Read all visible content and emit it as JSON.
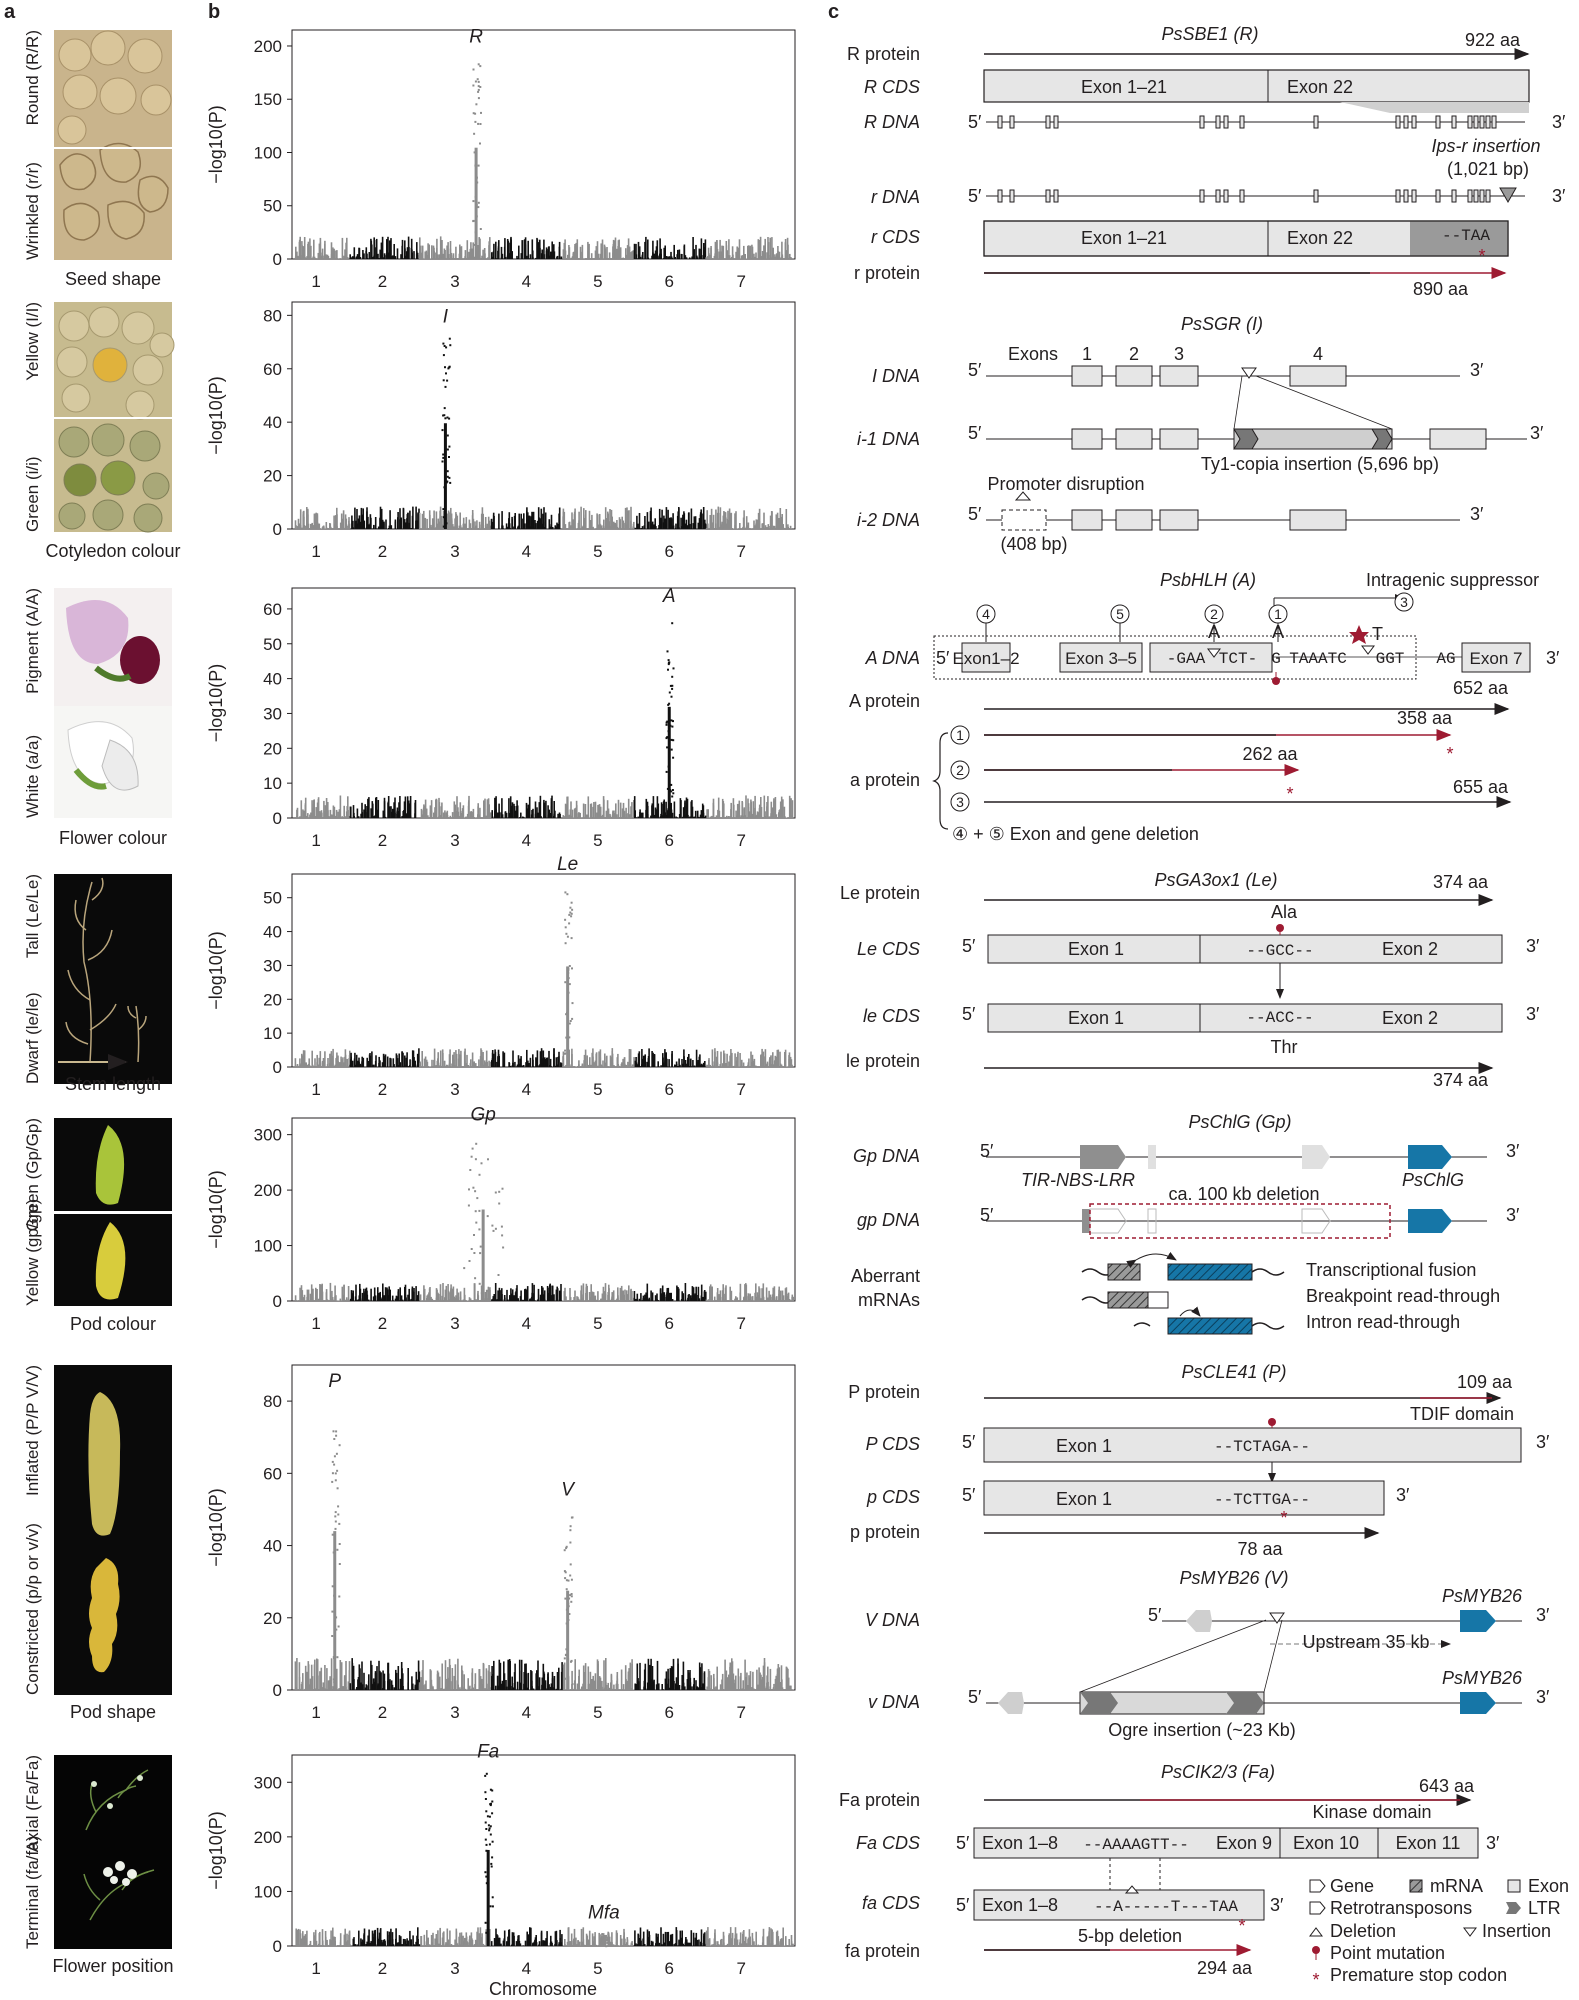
{
  "panel_labels": {
    "a": "a",
    "b": "b",
    "c": "c"
  },
  "colors": {
    "red": "#9e1b32",
    "blue": "#1676a7",
    "grey": "#8c8c8c",
    "black": "#111111",
    "box": "#e6e6e6"
  },
  "traits": [
    {
      "top": "Wrinkled (r/r)",
      "bottom": "Round (R/R)",
      "caption": "Seed shape"
    },
    {
      "top": "Green (i/i)",
      "bottom": "Yellow (I/I)",
      "caption": "Cotyledon colour"
    },
    {
      "top": "White (a/a)",
      "bottom": "Pigment (A/A)",
      "caption": "Flower colour"
    },
    {
      "top": "Dwarf (le/le)",
      "bottom": "Tall (Le/Le)",
      "caption": "Stem length"
    },
    {
      "top": "Yellow (gp/gp)",
      "bottom": "Green (Gp/Gp)",
      "caption": "Pod colour"
    },
    {
      "top": "Constricted (p/p or v/v)",
      "bottom": "Inflated (P/P V/V)",
      "caption": "Pod shape"
    },
    {
      "top": "Terminal (fa/fa)",
      "bottom": "Axial (Fa/Fa)",
      "caption": "Flower position"
    }
  ],
  "manhattan": {
    "ylabel": "−log10(P)",
    "xlabel": "Chromosome",
    "chromosomes": [
      "1",
      "2",
      "3",
      "4",
      "5",
      "6",
      "7"
    ]
  },
  "chart_data": [
    {
      "type": "scatter",
      "subtype": "manhattan",
      "trait": "Seed shape",
      "ylabel": "−log10(P)",
      "ylim": [
        0,
        215
      ],
      "yticks": [
        0,
        50,
        100,
        150,
        200
      ],
      "categories": [
        "1",
        "2",
        "3",
        "4",
        "5",
        "6",
        "7"
      ],
      "peaks": [
        {
          "label": "R",
          "chromosome": "3",
          "value": 190
        }
      ]
    },
    {
      "type": "scatter",
      "subtype": "manhattan",
      "trait": "Cotyledon colour",
      "ylabel": "−log10(P)",
      "ylim": [
        0,
        85
      ],
      "yticks": [
        0,
        20,
        40,
        60,
        80
      ],
      "categories": [
        "1",
        "2",
        "3",
        "4",
        "5",
        "6",
        "7"
      ],
      "peaks": [
        {
          "label": "I",
          "chromosome": "2",
          "value": 72
        }
      ]
    },
    {
      "type": "scatter",
      "subtype": "manhattan",
      "trait": "Flower colour",
      "ylabel": "−log10(P)",
      "ylim": [
        0,
        66
      ],
      "yticks": [
        0,
        10,
        20,
        30,
        40,
        50,
        60
      ],
      "categories": [
        "1",
        "2",
        "3",
        "4",
        "5",
        "6",
        "7"
      ],
      "peaks": [
        {
          "label": "A",
          "chromosome": "6",
          "value": 58
        }
      ]
    },
    {
      "type": "scatter",
      "subtype": "manhattan",
      "trait": "Stem length",
      "ylabel": "−log10(P)",
      "ylim": [
        0,
        57
      ],
      "yticks": [
        0,
        10,
        20,
        30,
        40,
        50
      ],
      "categories": [
        "1",
        "2",
        "3",
        "4",
        "5",
        "6",
        "7"
      ],
      "peaks": [
        {
          "label": "Le",
          "chromosome": "5",
          "value": 54
        }
      ]
    },
    {
      "type": "scatter",
      "subtype": "manhattan",
      "trait": "Pod colour",
      "ylabel": "−log10(P)",
      "ylim": [
        0,
        330
      ],
      "yticks": [
        0,
        100,
        200,
        300
      ],
      "categories": [
        "1",
        "2",
        "3",
        "4",
        "5",
        "6",
        "7"
      ],
      "peaks": [
        {
          "label": "Gp",
          "chromosome": "3",
          "value": 300
        }
      ]
    },
    {
      "type": "scatter",
      "subtype": "manhattan",
      "trait": "Pod shape",
      "ylabel": "−log10(P)",
      "ylim": [
        0,
        90
      ],
      "yticks": [
        0,
        20,
        40,
        60,
        80
      ],
      "categories": [
        "1",
        "2",
        "3",
        "4",
        "5",
        "6",
        "7"
      ],
      "peaks": [
        {
          "label": "P",
          "chromosome": "1",
          "value": 80
        },
        {
          "label": "V",
          "chromosome": "5",
          "value": 50
        }
      ]
    },
    {
      "type": "scatter",
      "subtype": "manhattan",
      "trait": "Flower position",
      "ylabel": "−log10(P)",
      "ylim": [
        0,
        350
      ],
      "yticks": [
        0,
        100,
        200,
        300
      ],
      "categories": [
        "1",
        "2",
        "3",
        "4",
        "5",
        "6",
        "7"
      ],
      "peaks": [
        {
          "label": "Fa",
          "chromosome": "4",
          "value": 320
        },
        {
          "label": "Mfa",
          "chromosome": "6",
          "value": 25
        }
      ]
    }
  ],
  "c": {
    "sbe1": {
      "title": "PsSBE1 (R)",
      "rows": [
        "R protein",
        "R CDS",
        "R DNA",
        "r DNA",
        "r CDS",
        "r protein"
      ],
      "R_len": "922 aa",
      "r_len": "890 aa",
      "exon_a": "Exon 1–21",
      "exon_b": "Exon 22",
      "ips": "Ips-r insertion",
      "ips_size": "(1,021 bp)",
      "taa": "--TAA"
    },
    "sgr": {
      "title": "PsSGR (I)",
      "exons_label": "Exons",
      "exon_nums": [
        "1",
        "2",
        "3",
        "4"
      ],
      "rows": [
        "I DNA",
        "i-1 DNA",
        "i-2 DNA"
      ],
      "ty1": "Ty1-copia insertion (5,696 bp)",
      "promoter": "Promoter disruption",
      "promoter_size": "(408 bp)"
    },
    "bhlh": {
      "title": "PsbHLH (A)",
      "suppressor": "Intragenic suppressor",
      "circles": [
        "4",
        "5",
        "2",
        "1",
        "3"
      ],
      "rows": [
        "A DNA",
        "A protein",
        "a protein"
      ],
      "exons": [
        "Exon1–2",
        "Exon 3–5",
        "Exon 7"
      ],
      "seq1": "-GAA",
      "seq2": "TCT-",
      "seq3": "G",
      "seq4": "TAAATC",
      "seq5": "GGT",
      "seq6": "AG",
      "sub_A1": "A",
      "sub_A2": "A",
      "sub_T": "T",
      "A_len": "652 aa",
      "a1_len": "358 aa",
      "a2_len": "262 aa",
      "a3_len": "655 aa",
      "deletion": "④ + ⑤ Exon and gene deletion",
      "a_nums": [
        "1",
        "2",
        "3"
      ]
    },
    "ga3ox1": {
      "title": "PsGA3ox1 (Le)",
      "rows": [
        "Le protein",
        "Le CDS",
        "le CDS",
        "le protein"
      ],
      "Le_len": "374 aa",
      "le_len": "374 aa",
      "exon1": "Exon 1",
      "exon2": "Exon 2",
      "seq_le": "--GCC--",
      "seq_lo": "--ACC--",
      "ala": "Ala",
      "thr": "Thr"
    },
    "chlg": {
      "title": "PsChlG (Gp)",
      "rows": [
        "Gp DNA",
        "gp DNA",
        "Aberrant",
        "mRNAs"
      ],
      "tir": "TIR-NBS-LRR",
      "chlg": "PsChlG",
      "deletion": "ca. 100 kb deletion",
      "fusions": [
        "Transcriptional fusion",
        "Breakpoint read-through",
        "Intron read-through"
      ]
    },
    "cle41": {
      "title": "PsCLE41 (P)",
      "rows": [
        "P protein",
        "P CDS",
        "p CDS",
        "p protein"
      ],
      "P_len": "109 aa",
      "p_len": "78 aa",
      "tdif": "TDIF domain",
      "exon1": "Exon 1",
      "seqP": "--TCTAGA--",
      "seqp": "--TCTTGA--"
    },
    "myb26": {
      "title": "PsMYB26 (V)",
      "rows": [
        "V DNA",
        "v DNA"
      ],
      "gene": "PsMYB26",
      "upstream": "Upstream 35 kb",
      "ogre": "Ogre insertion (~23 Kb)"
    },
    "cik": {
      "title": "PsCIK2/3 (Fa)",
      "rows": [
        "Fa protein",
        "Fa CDS",
        "fa CDS",
        "fa protein"
      ],
      "Fa_len": "643 aa",
      "fa_len": "294 aa",
      "kinase": "Kinase domain",
      "exons": [
        "Exon 1–8",
        "Exon 9",
        "Exon 10",
        "Exon 11"
      ],
      "seqFa": "--AAAAGTT--",
      "seqfa": "--A-----T---TAA",
      "deletion": "5-bp deletion"
    },
    "legend": [
      "Gene",
      "mRNA",
      "Exon",
      "Retrotransposons",
      "LTR",
      "Deletion",
      "Insertion",
      "Point mutation",
      "Premature stop codon"
    ],
    "five": "5′",
    "three": "3′"
  }
}
